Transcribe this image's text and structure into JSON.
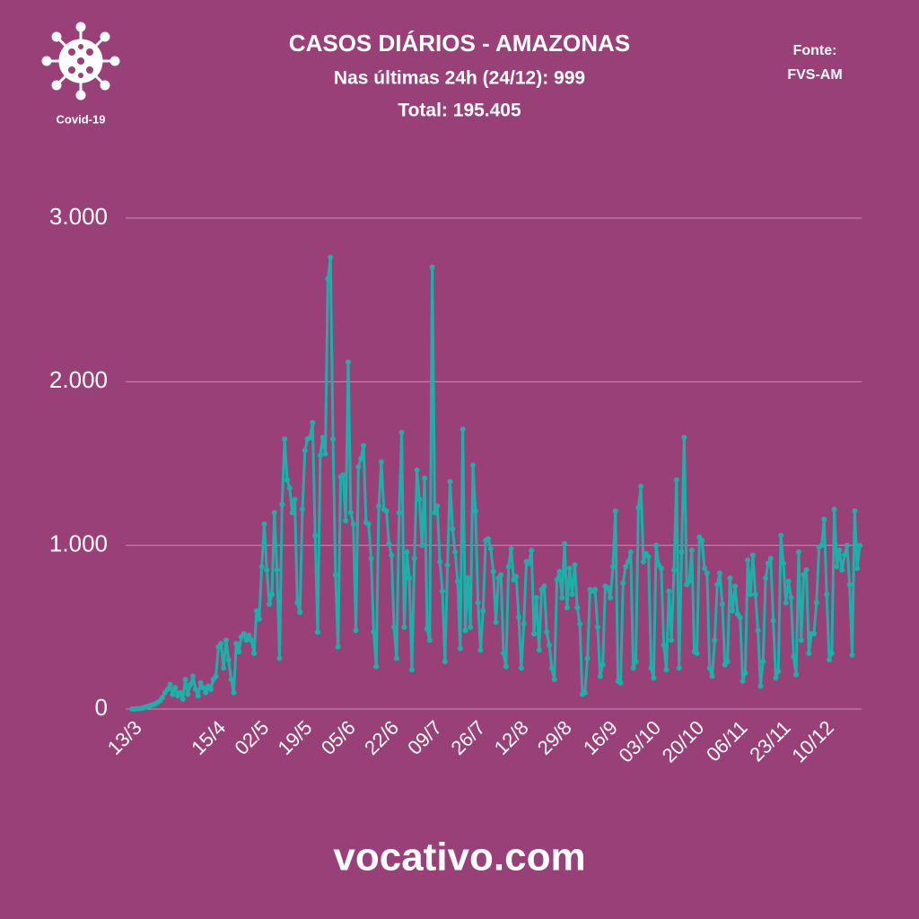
{
  "chart_data": {
    "type": "line",
    "title": "CASOS DIÁRIOS - AMAZONAS",
    "subtitle": [
      "Nas últimas 24h (24/12): 999",
      "Total: 195.405"
    ],
    "source": [
      "Fonte:",
      "FVS-AM"
    ],
    "logo_label": "Covid-19",
    "footer": "vocativo.com",
    "color": "#1cb0a8",
    "grid": true,
    "ylim": [
      0,
      3000
    ],
    "yticks": [
      0,
      {
        "value": 1000,
        "label": "1.000"
      },
      {
        "value": 2000,
        "label": "2.000"
      },
      {
        "value": 3000,
        "label": "3.000"
      }
    ],
    "categories": [
      "13/3",
      null,
      null,
      null,
      null,
      null,
      null,
      null,
      null,
      null,
      null,
      null,
      null,
      null,
      null,
      null,
      null,
      null,
      null,
      null,
      null,
      null,
      null,
      null,
      null,
      null,
      null,
      null,
      null,
      null,
      null,
      null,
      null,
      "15/4",
      null,
      null,
      null,
      null,
      null,
      null,
      null,
      null,
      null,
      null,
      null,
      null,
      null,
      null,
      null,
      null,
      "02/5",
      null,
      null,
      null,
      null,
      null,
      null,
      null,
      null,
      null,
      null,
      null,
      null,
      null,
      null,
      null,
      null,
      "19/5",
      null,
      null,
      null,
      null,
      null,
      null,
      null,
      null,
      null,
      null,
      null,
      null,
      null,
      null,
      null,
      null,
      "05/6",
      null,
      null,
      null,
      null,
      null,
      null,
      null,
      null,
      null,
      null,
      null,
      null,
      null,
      null,
      null,
      null,
      "22/6",
      null,
      null,
      null,
      null,
      null,
      null,
      null,
      null,
      null,
      null,
      null,
      null,
      null,
      null,
      null,
      null,
      "09/7",
      null,
      null,
      null,
      null,
      null,
      null,
      null,
      null,
      null,
      null,
      null,
      null,
      null,
      null,
      null,
      null,
      "26/7",
      null,
      null,
      null,
      null,
      null,
      null,
      null,
      null,
      null,
      null,
      null,
      null,
      null,
      null,
      null,
      null,
      "12/8",
      null,
      null,
      null,
      null,
      null,
      null,
      null,
      null,
      null,
      null,
      null,
      null,
      null,
      null,
      null,
      null,
      "29/8",
      null,
      null,
      null,
      null,
      null,
      null,
      null,
      null,
      null,
      null,
      null,
      null,
      null,
      null,
      null,
      null,
      null,
      "16/9",
      null,
      null,
      null,
      null,
      null,
      null,
      null,
      null,
      null,
      null,
      null,
      null,
      null,
      null,
      null,
      null,
      "03/10",
      null,
      null,
      null,
      null,
      null,
      null,
      null,
      null,
      null,
      null,
      null,
      null,
      null,
      null,
      null,
      null,
      "20/10",
      null,
      null,
      null,
      null,
      null,
      null,
      null,
      null,
      null,
      null,
      null,
      null,
      null,
      null,
      null,
      null,
      "06/11",
      null,
      null,
      null,
      null,
      null,
      null,
      null,
      null,
      null,
      null,
      null,
      null,
      null,
      null,
      null,
      null,
      "23/11",
      null,
      null,
      null,
      null,
      null,
      null,
      null,
      null,
      null,
      null,
      null,
      null,
      null,
      null,
      null,
      null,
      "10/12",
      null,
      null,
      null,
      null,
      null,
      null,
      null,
      null,
      null,
      null,
      null,
      null,
      null,
      null
    ],
    "values": [
      0,
      0,
      2,
      3,
      5,
      10,
      15,
      20,
      25,
      30,
      40,
      50,
      70,
      100,
      120,
      150,
      90,
      130,
      80,
      100,
      60,
      180,
      90,
      150,
      200,
      120,
      80,
      160,
      130,
      100,
      140,
      120,
      180,
      200,
      380,
      400,
      250,
      420,
      300,
      180,
      100,
      400,
      350,
      440,
      460,
      420,
      450,
      420,
      340,
      600,
      550,
      870,
      1130,
      850,
      640,
      700,
      1200,
      850,
      310,
      1250,
      1650,
      1400,
      1350,
      1200,
      1280,
      650,
      590,
      1220,
      1580,
      1650,
      1660,
      1750,
      1060,
      470,
      1550,
      1660,
      1560,
      2630,
      2760,
      1650,
      820,
      380,
      1420,
      1430,
      1150,
      2120,
      1200,
      1130,
      480,
      1480,
      1530,
      1610,
      1140,
      1130,
      920,
      470,
      260,
      1240,
      1510,
      1220,
      1210,
      1010,
      940,
      500,
      310,
      1200,
      1690,
      500,
      960,
      800,
      240,
      920,
      1460,
      1280,
      1000,
      1410,
      490,
      420,
      2700,
      1200,
      1240,
      900,
      720,
      290,
      880,
      1390,
      1100,
      960,
      780,
      370,
      1710,
      480,
      800,
      500,
      1490,
      1210,
      650,
      360,
      600,
      1030,
      1040,
      980,
      840,
      530,
      800,
      820,
      340,
      260,
      870,
      980,
      790,
      810,
      560,
      250,
      520,
      900,
      890,
      970,
      460,
      680,
      360,
      730,
      750,
      470,
      390,
      250,
      180,
      790,
      840,
      680,
      1010,
      620,
      860,
      700,
      880,
      620,
      520,
      90,
      100,
      310,
      730,
      720,
      730,
      500,
      200,
      270,
      750,
      740,
      680,
      870,
      1210,
      170,
      160,
      770,
      870,
      900,
      960,
      250,
      290,
      1230,
      1360,
      900,
      950,
      930,
      250,
      190,
      1000,
      880,
      860,
      390,
      240,
      720,
      420,
      850,
      1400,
      250,
      960,
      1660,
      760,
      780,
      970,
      350,
      340,
      1050,
      1030,
      860,
      830,
      250,
      200,
      420,
      760,
      830,
      640,
      270,
      290,
      800,
      600,
      750,
      580,
      560,
      170,
      220,
      910,
      700,
      940,
      700,
      480,
      140,
      290,
      800,
      890,
      920,
      540,
      190,
      230,
      1060,
      890,
      650,
      780,
      680,
      320,
      210,
      960,
      420,
      820,
      850,
      340,
      460,
      460,
      650,
      990,
      1000,
      1160,
      700,
      300,
      340,
      1220,
      870,
      970,
      850,
      940,
      1000,
      760,
      330,
      1210,
      860,
      999
    ]
  }
}
